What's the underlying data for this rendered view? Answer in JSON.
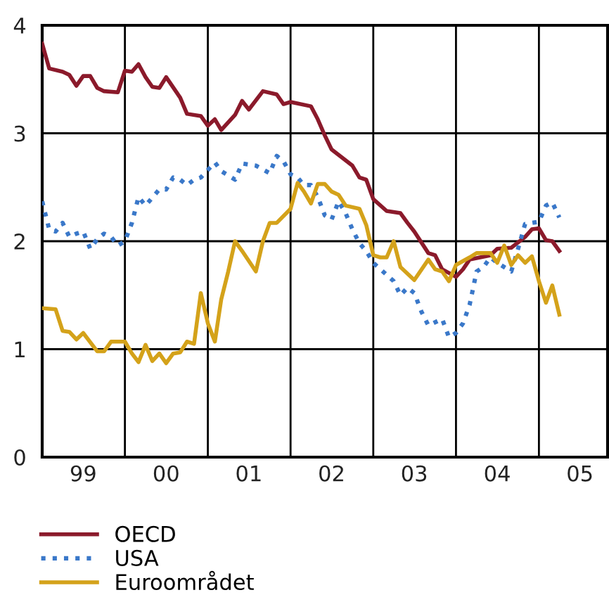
{
  "chart_data": {
    "type": "line",
    "xlim": [
      "1999-01-01",
      "2005-10-31"
    ],
    "ylim": [
      0,
      4
    ],
    "yticks": [
      0,
      1,
      2,
      3,
      4
    ],
    "xticks": [
      {
        "value": "1999-07-01",
        "label": "99"
      },
      {
        "value": "2000-01-01",
        "label": null
      },
      {
        "value": "2000-07-01",
        "label": "00"
      },
      {
        "value": "2001-01-01",
        "label": null
      },
      {
        "value": "2001-07-01",
        "label": "01"
      },
      {
        "value": "2002-01-01",
        "label": null
      },
      {
        "value": "2002-07-01",
        "label": "02"
      },
      {
        "value": "2003-01-01",
        "label": null
      },
      {
        "value": "2003-07-01",
        "label": "03"
      },
      {
        "value": "2004-01-01",
        "label": null
      },
      {
        "value": "2004-07-01",
        "label": "04"
      },
      {
        "value": "2005-01-01",
        "label": null
      },
      {
        "value": "2005-07-01",
        "label": "05"
      }
    ],
    "grid": true,
    "legend": "bottom",
    "series": [
      {
        "name": "OECD",
        "color": "#8b1a2b",
        "line_style": "solid",
        "x": [
          "1999-01",
          "1999-02",
          "1999-04",
          "1999-05",
          "1999-06",
          "1999-07",
          "1999-08",
          "1999-09",
          "1999-10",
          "1999-12",
          "2000-01",
          "2000-02",
          "2000-03",
          "2000-04",
          "2000-05",
          "2000-06",
          "2000-07",
          "2000-09",
          "2000-10",
          "2000-12",
          "2001-01",
          "2001-02",
          "2001-03",
          "2001-05",
          "2001-06",
          "2001-07",
          "2001-09",
          "2001-11",
          "2001-12",
          "2002-01",
          "2002-04",
          "2002-05",
          "2002-06",
          "2002-07",
          "2002-08",
          "2002-10",
          "2002-11",
          "2002-12",
          "2003-01",
          "2003-03",
          "2003-05",
          "2003-06",
          "2003-07",
          "2003-09",
          "2003-10",
          "2003-11",
          "2004-01",
          "2004-02",
          "2004-03",
          "2004-06",
          "2004-07",
          "2004-09",
          "2004-11",
          "2004-12",
          "2005-01",
          "2005-02",
          "2005-03",
          "2005-04"
        ],
        "values": [
          3.83,
          3.6,
          3.57,
          3.54,
          3.44,
          3.53,
          3.53,
          3.42,
          3.39,
          3.38,
          3.58,
          3.57,
          3.64,
          3.52,
          3.43,
          3.42,
          3.52,
          3.33,
          3.18,
          3.16,
          3.07,
          3.13,
          3.03,
          3.17,
          3.3,
          3.22,
          3.39,
          3.36,
          3.27,
          3.29,
          3.25,
          3.13,
          2.98,
          2.85,
          2.8,
          2.7,
          2.59,
          2.57,
          2.39,
          2.28,
          2.26,
          2.17,
          2.09,
          1.89,
          1.87,
          1.74,
          1.67,
          1.74,
          1.83,
          1.87,
          1.93,
          1.94,
          2.04,
          2.11,
          2.12,
          2.01,
          2.0,
          1.91
        ]
      },
      {
        "name": "USA",
        "color": "#3a78c9",
        "line_style": "dotted",
        "x": [
          "1999-01",
          "1999-02",
          "1999-03",
          "1999-04",
          "1999-05",
          "1999-06",
          "1999-07",
          "1999-08",
          "1999-09",
          "1999-10",
          "1999-11",
          "1999-12",
          "2000-01",
          "2000-02",
          "2000-03",
          "2000-04",
          "2000-06",
          "2000-07",
          "2000-08",
          "2000-09",
          "2000-10",
          "2000-11",
          "2000-12",
          "2001-02",
          "2001-03",
          "2001-05",
          "2001-06",
          "2001-08",
          "2001-10",
          "2001-11",
          "2001-12",
          "2002-01",
          "2002-02",
          "2002-03",
          "2002-04",
          "2002-05",
          "2002-06",
          "2002-07",
          "2002-08",
          "2002-09",
          "2002-10",
          "2002-11",
          "2002-12",
          "2003-01",
          "2003-04",
          "2003-05",
          "2003-06",
          "2003-07",
          "2003-08",
          "2003-09",
          "2003-11",
          "2003-12",
          "2004-01",
          "2004-02",
          "2004-03",
          "2004-04",
          "2004-05",
          "2004-06",
          "2004-07",
          "2004-09",
          "2004-10",
          "2004-11",
          "2005-01",
          "2005-02",
          "2005-03",
          "2005-04"
        ],
        "values": [
          2.37,
          2.11,
          2.09,
          2.17,
          2.04,
          2.07,
          2.09,
          1.93,
          2.02,
          2.07,
          2.04,
          1.96,
          2.0,
          2.17,
          2.41,
          2.33,
          2.48,
          2.48,
          2.59,
          2.57,
          2.52,
          2.57,
          2.59,
          2.73,
          2.65,
          2.57,
          2.72,
          2.7,
          2.63,
          2.79,
          2.74,
          2.62,
          2.59,
          2.52,
          2.52,
          2.41,
          2.24,
          2.2,
          2.37,
          2.26,
          2.11,
          1.98,
          1.91,
          1.8,
          1.63,
          1.5,
          1.57,
          1.52,
          1.35,
          1.22,
          1.28,
          1.11,
          1.15,
          1.24,
          1.41,
          1.72,
          1.76,
          1.85,
          1.8,
          1.72,
          1.93,
          2.16,
          2.18,
          2.33,
          2.36,
          2.22
        ]
      },
      {
        "name": "Euroområdet",
        "color": "#d4a21a",
        "line_style": "solid",
        "x": [
          "1999-01",
          "1999-03",
          "1999-04",
          "1999-05",
          "1999-06",
          "1999-07",
          "1999-09",
          "1999-10",
          "1999-11",
          "2000-01",
          "2000-02",
          "2000-03",
          "2000-04",
          "2000-05",
          "2000-06",
          "2000-07",
          "2000-08",
          "2000-09",
          "2000-10",
          "2000-11",
          "2000-12",
          "2001-01",
          "2001-02",
          "2001-03",
          "2001-04",
          "2001-05",
          "2001-06",
          "2001-08",
          "2001-09",
          "2001-10",
          "2001-11",
          "2002-01",
          "2002-02",
          "2002-03",
          "2002-04",
          "2002-05",
          "2002-06",
          "2002-07",
          "2002-08",
          "2002-09",
          "2002-11",
          "2002-12",
          "2003-01",
          "2003-02",
          "2003-03",
          "2003-04",
          "2003-05",
          "2003-07",
          "2003-09",
          "2003-10",
          "2003-11",
          "2003-12",
          "2004-01",
          "2004-03",
          "2004-04",
          "2004-06",
          "2004-07",
          "2004-08",
          "2004-09",
          "2004-10",
          "2004-11",
          "2004-12",
          "2005-01",
          "2005-02",
          "2005-03",
          "2005-04"
        ],
        "values": [
          1.38,
          1.37,
          1.17,
          1.16,
          1.09,
          1.15,
          0.98,
          0.98,
          1.07,
          1.07,
          0.96,
          0.88,
          1.04,
          0.89,
          0.96,
          0.87,
          0.96,
          0.97,
          1.07,
          1.05,
          1.52,
          1.24,
          1.07,
          1.46,
          1.72,
          2.0,
          1.91,
          1.72,
          2.0,
          2.17,
          2.17,
          2.3,
          2.54,
          2.46,
          2.35,
          2.53,
          2.53,
          2.46,
          2.43,
          2.33,
          2.3,
          2.15,
          1.87,
          1.85,
          1.85,
          2.0,
          1.76,
          1.64,
          1.83,
          1.74,
          1.72,
          1.63,
          1.78,
          1.85,
          1.89,
          1.89,
          1.8,
          1.96,
          1.78,
          1.87,
          1.8,
          1.86,
          1.63,
          1.43,
          1.59,
          1.32
        ]
      }
    ]
  }
}
